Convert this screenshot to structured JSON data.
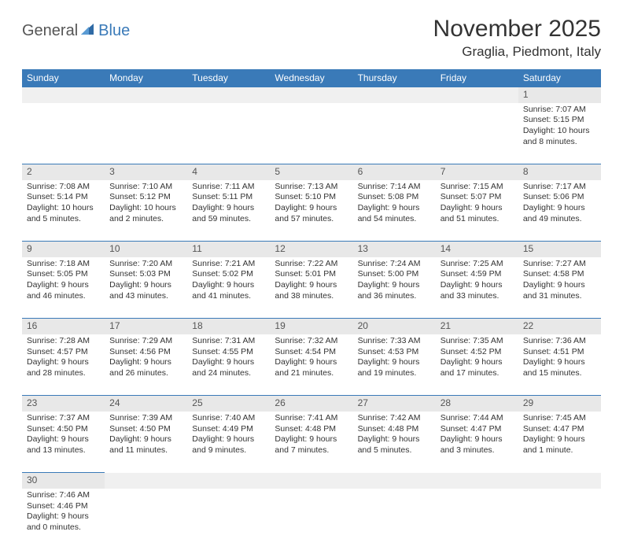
{
  "logo": {
    "part1": "General",
    "part2": "Blue"
  },
  "title": "November 2025",
  "location": "Graglia, Piedmont, Italy",
  "colors": {
    "header_bg": "#3a7ab8",
    "daynum_bg": "#e8e8e8",
    "border": "#3a7ab8",
    "text": "#333333"
  },
  "weekdays": [
    "Sunday",
    "Monday",
    "Tuesday",
    "Wednesday",
    "Thursday",
    "Friday",
    "Saturday"
  ],
  "weeks": [
    [
      null,
      null,
      null,
      null,
      null,
      null,
      {
        "n": "1",
        "sr": "Sunrise: 7:07 AM",
        "ss": "Sunset: 5:15 PM",
        "dl": "Daylight: 10 hours and 8 minutes."
      }
    ],
    [
      {
        "n": "2",
        "sr": "Sunrise: 7:08 AM",
        "ss": "Sunset: 5:14 PM",
        "dl": "Daylight: 10 hours and 5 minutes."
      },
      {
        "n": "3",
        "sr": "Sunrise: 7:10 AM",
        "ss": "Sunset: 5:12 PM",
        "dl": "Daylight: 10 hours and 2 minutes."
      },
      {
        "n": "4",
        "sr": "Sunrise: 7:11 AM",
        "ss": "Sunset: 5:11 PM",
        "dl": "Daylight: 9 hours and 59 minutes."
      },
      {
        "n": "5",
        "sr": "Sunrise: 7:13 AM",
        "ss": "Sunset: 5:10 PM",
        "dl": "Daylight: 9 hours and 57 minutes."
      },
      {
        "n": "6",
        "sr": "Sunrise: 7:14 AM",
        "ss": "Sunset: 5:08 PM",
        "dl": "Daylight: 9 hours and 54 minutes."
      },
      {
        "n": "7",
        "sr": "Sunrise: 7:15 AM",
        "ss": "Sunset: 5:07 PM",
        "dl": "Daylight: 9 hours and 51 minutes."
      },
      {
        "n": "8",
        "sr": "Sunrise: 7:17 AM",
        "ss": "Sunset: 5:06 PM",
        "dl": "Daylight: 9 hours and 49 minutes."
      }
    ],
    [
      {
        "n": "9",
        "sr": "Sunrise: 7:18 AM",
        "ss": "Sunset: 5:05 PM",
        "dl": "Daylight: 9 hours and 46 minutes."
      },
      {
        "n": "10",
        "sr": "Sunrise: 7:20 AM",
        "ss": "Sunset: 5:03 PM",
        "dl": "Daylight: 9 hours and 43 minutes."
      },
      {
        "n": "11",
        "sr": "Sunrise: 7:21 AM",
        "ss": "Sunset: 5:02 PM",
        "dl": "Daylight: 9 hours and 41 minutes."
      },
      {
        "n": "12",
        "sr": "Sunrise: 7:22 AM",
        "ss": "Sunset: 5:01 PM",
        "dl": "Daylight: 9 hours and 38 minutes."
      },
      {
        "n": "13",
        "sr": "Sunrise: 7:24 AM",
        "ss": "Sunset: 5:00 PM",
        "dl": "Daylight: 9 hours and 36 minutes."
      },
      {
        "n": "14",
        "sr": "Sunrise: 7:25 AM",
        "ss": "Sunset: 4:59 PM",
        "dl": "Daylight: 9 hours and 33 minutes."
      },
      {
        "n": "15",
        "sr": "Sunrise: 7:27 AM",
        "ss": "Sunset: 4:58 PM",
        "dl": "Daylight: 9 hours and 31 minutes."
      }
    ],
    [
      {
        "n": "16",
        "sr": "Sunrise: 7:28 AM",
        "ss": "Sunset: 4:57 PM",
        "dl": "Daylight: 9 hours and 28 minutes."
      },
      {
        "n": "17",
        "sr": "Sunrise: 7:29 AM",
        "ss": "Sunset: 4:56 PM",
        "dl": "Daylight: 9 hours and 26 minutes."
      },
      {
        "n": "18",
        "sr": "Sunrise: 7:31 AM",
        "ss": "Sunset: 4:55 PM",
        "dl": "Daylight: 9 hours and 24 minutes."
      },
      {
        "n": "19",
        "sr": "Sunrise: 7:32 AM",
        "ss": "Sunset: 4:54 PM",
        "dl": "Daylight: 9 hours and 21 minutes."
      },
      {
        "n": "20",
        "sr": "Sunrise: 7:33 AM",
        "ss": "Sunset: 4:53 PM",
        "dl": "Daylight: 9 hours and 19 minutes."
      },
      {
        "n": "21",
        "sr": "Sunrise: 7:35 AM",
        "ss": "Sunset: 4:52 PM",
        "dl": "Daylight: 9 hours and 17 minutes."
      },
      {
        "n": "22",
        "sr": "Sunrise: 7:36 AM",
        "ss": "Sunset: 4:51 PM",
        "dl": "Daylight: 9 hours and 15 minutes."
      }
    ],
    [
      {
        "n": "23",
        "sr": "Sunrise: 7:37 AM",
        "ss": "Sunset: 4:50 PM",
        "dl": "Daylight: 9 hours and 13 minutes."
      },
      {
        "n": "24",
        "sr": "Sunrise: 7:39 AM",
        "ss": "Sunset: 4:50 PM",
        "dl": "Daylight: 9 hours and 11 minutes."
      },
      {
        "n": "25",
        "sr": "Sunrise: 7:40 AM",
        "ss": "Sunset: 4:49 PM",
        "dl": "Daylight: 9 hours and 9 minutes."
      },
      {
        "n": "26",
        "sr": "Sunrise: 7:41 AM",
        "ss": "Sunset: 4:48 PM",
        "dl": "Daylight: 9 hours and 7 minutes."
      },
      {
        "n": "27",
        "sr": "Sunrise: 7:42 AM",
        "ss": "Sunset: 4:48 PM",
        "dl": "Daylight: 9 hours and 5 minutes."
      },
      {
        "n": "28",
        "sr": "Sunrise: 7:44 AM",
        "ss": "Sunset: 4:47 PM",
        "dl": "Daylight: 9 hours and 3 minutes."
      },
      {
        "n": "29",
        "sr": "Sunrise: 7:45 AM",
        "ss": "Sunset: 4:47 PM",
        "dl": "Daylight: 9 hours and 1 minute."
      }
    ],
    [
      {
        "n": "30",
        "sr": "Sunrise: 7:46 AM",
        "ss": "Sunset: 4:46 PM",
        "dl": "Daylight: 9 hours and 0 minutes."
      },
      null,
      null,
      null,
      null,
      null,
      null
    ]
  ]
}
